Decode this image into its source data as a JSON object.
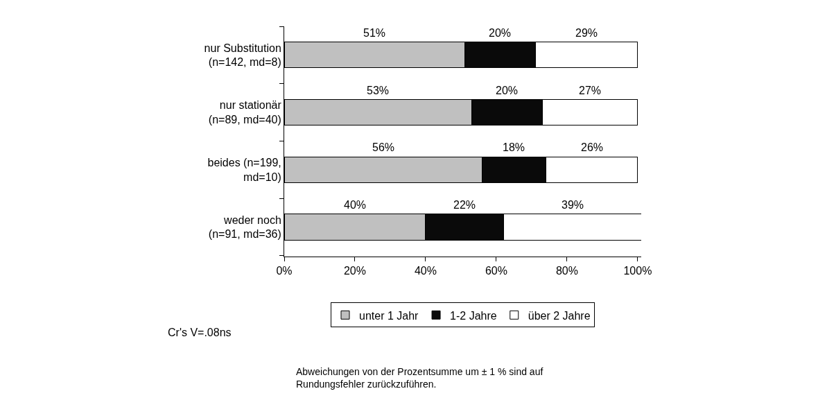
{
  "chart_data": {
    "type": "bar",
    "orientation": "horizontal",
    "stacked": true,
    "categories": [
      "nur Substitution\n(n=142, md=8)",
      "nur stationär\n(n=89, md=40)",
      "beides (n=199,\nmd=10)",
      "weder noch\n(n=91, md=36)"
    ],
    "series": [
      {
        "name": "unter 1 Jahr",
        "color": "#c0c0c0",
        "values": [
          51,
          53,
          56,
          40
        ],
        "value_labels": [
          "51%",
          "53%",
          "56%",
          "40%"
        ]
      },
      {
        "name": "1-2 Jahre",
        "color": "#0a0a0a",
        "values": [
          20,
          20,
          18,
          22
        ],
        "value_labels": [
          "20%",
          "20%",
          "18%",
          "22%"
        ]
      },
      {
        "name": "über 2 Jahre",
        "color": "#ffffff",
        "values": [
          29,
          27,
          26,
          39
        ],
        "value_labels": [
          "29%",
          "27%",
          "26%",
          "39%"
        ]
      }
    ],
    "xlim": [
      0,
      101
    ],
    "xticks": [
      {
        "value": 0,
        "label": "0%"
      },
      {
        "value": 20,
        "label": "20%"
      },
      {
        "value": 40,
        "label": "40%"
      },
      {
        "value": 60,
        "label": "60%"
      },
      {
        "value": 80,
        "label": "80%"
      },
      {
        "value": 100,
        "label": "100%"
      }
    ],
    "legend": "bottom",
    "annotations": [
      "Cr's V=.08ns",
      "Abweichungen von der Prozentsumme um ± 1 % sind auf\nRundungsfehler zurückzuführen."
    ]
  }
}
